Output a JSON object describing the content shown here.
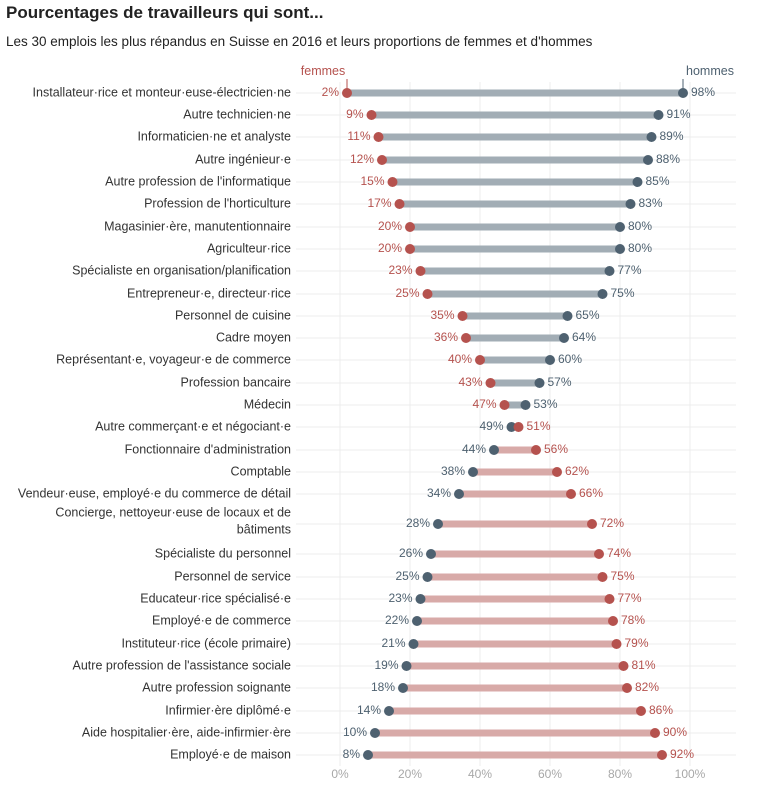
{
  "chart_data": {
    "type": "dumbbell",
    "title": "Pourcentages de travailleurs qui sont...",
    "subtitle": "Les 30 emplois les plus répandus en Suisse en 2016 et leurs proportions de femmes et d'hommes",
    "series_labels": {
      "femmes": "femmes",
      "hommes": "hommes"
    },
    "colors": {
      "femmes": "#b5524e",
      "hommes": "#4e6170",
      "bar_hommes": "#a2adb5",
      "bar_femmes": "#d8aaa8",
      "grid": "#ececec"
    },
    "xlim": [
      0,
      100
    ],
    "xticks": [
      0,
      20,
      40,
      60,
      80,
      100
    ],
    "xtick_labels": [
      "0%",
      "20%",
      "40%",
      "60%",
      "80%",
      "100%"
    ],
    "rows": [
      {
        "label": "Installateur·rice et monteur·euse-électricien·ne",
        "femmes": 2,
        "hommes": 98
      },
      {
        "label": "Autre technicien·ne",
        "femmes": 9,
        "hommes": 91
      },
      {
        "label": "Informaticien·ne et analyste",
        "femmes": 11,
        "hommes": 89
      },
      {
        "label": "Autre ingénieur·e",
        "femmes": 12,
        "hommes": 88
      },
      {
        "label": "Autre profession de l'informatique",
        "femmes": 15,
        "hommes": 85
      },
      {
        "label": "Profession de l'horticulture",
        "femmes": 17,
        "hommes": 83
      },
      {
        "label": "Magasinier·ère, manutentionnaire",
        "femmes": 20,
        "hommes": 80
      },
      {
        "label": "Agriculteur·rice",
        "femmes": 20,
        "hommes": 80
      },
      {
        "label": "Spécialiste en organisation/planification",
        "femmes": 23,
        "hommes": 77
      },
      {
        "label": "Entrepreneur·e, directeur·rice",
        "femmes": 25,
        "hommes": 75
      },
      {
        "label": "Personnel de cuisine",
        "femmes": 35,
        "hommes": 65
      },
      {
        "label": "Cadre moyen",
        "femmes": 36,
        "hommes": 64
      },
      {
        "label": "Représentant·e, voyageur·e de commerce",
        "femmes": 40,
        "hommes": 60
      },
      {
        "label": "Profession bancaire",
        "femmes": 43,
        "hommes": 57
      },
      {
        "label": "Médecin",
        "femmes": 47,
        "hommes": 53
      },
      {
        "label": "Autre commerçant·e et négociant·e",
        "femmes": 51,
        "hommes": 49
      },
      {
        "label": "Fonctionnaire d'administration",
        "femmes": 56,
        "hommes": 44
      },
      {
        "label": "Comptable",
        "femmes": 62,
        "hommes": 38
      },
      {
        "label": "Vendeur·euse, employé·e du commerce de détail",
        "femmes": 66,
        "hommes": 34
      },
      {
        "label": "Concierge, nettoyeur·euse de locaux et de bâtiments",
        "lines": [
          "Concierge, nettoyeur·euse de locaux et de",
          "bâtiments"
        ],
        "femmes": 72,
        "hommes": 28
      },
      {
        "label": "Spécialiste du personnel",
        "femmes": 74,
        "hommes": 26
      },
      {
        "label": "Personnel de service",
        "femmes": 75,
        "hommes": 25
      },
      {
        "label": "Educateur·rice spécialisé·e",
        "femmes": 77,
        "hommes": 23
      },
      {
        "label": "Employé·e de commerce",
        "femmes": 78,
        "hommes": 22
      },
      {
        "label": "Instituteur·rice (école primaire)",
        "femmes": 79,
        "hommes": 21
      },
      {
        "label": "Autre profession de l'assistance sociale",
        "femmes": 81,
        "hommes": 19
      },
      {
        "label": "Autre profession soignante",
        "femmes": 82,
        "hommes": 18
      },
      {
        "label": "Infirmier·ère diplômé·e",
        "femmes": 86,
        "hommes": 14
      },
      {
        "label": "Aide hospitalier·ère, aide-infirmier·ère",
        "femmes": 90,
        "hommes": 10
      },
      {
        "label": "Employé·e de maison",
        "femmes": 92,
        "hommes": 8
      }
    ]
  }
}
